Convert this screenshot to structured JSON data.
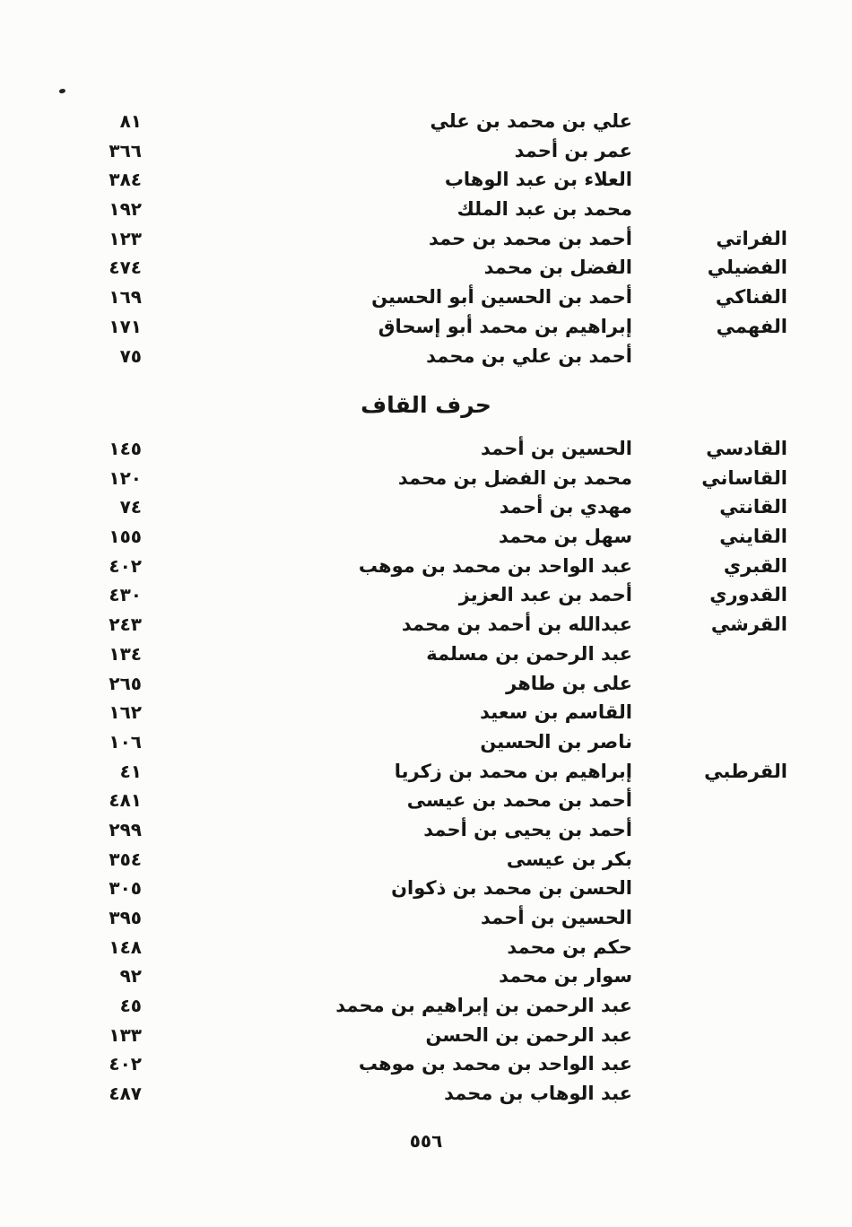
{
  "page": {
    "footer_page_number": "٥٥٦"
  },
  "sections": [
    {
      "id": "fa-section-tail",
      "heading": null,
      "rows": [
        {
          "nisba": "",
          "name": "علي بن محمد بن علي",
          "page": "٨١"
        },
        {
          "nisba": "",
          "name": "عمر بن أحمد",
          "page": "٣٦٦"
        },
        {
          "nisba": "",
          "name": "العلاء بن عبد الوهاب",
          "page": "٣٨٤"
        },
        {
          "nisba": "",
          "name": "محمد بن عبد الملك",
          "page": "١٩٢"
        },
        {
          "nisba": "الفراتي",
          "name": "أحمد بن محمد بن حمد",
          "page": "١٢٣"
        },
        {
          "nisba": "الفضيلي",
          "name": "الفضل بن محمد",
          "page": "٤٧٤"
        },
        {
          "nisba": "الفناكي",
          "name": "أحمد بن الحسين أبو الحسين",
          "page": "١٦٩"
        },
        {
          "nisba": "الفهمي",
          "name": "إبراهيم بن محمد أبو إسحاق",
          "page": "١٧١"
        },
        {
          "nisba": "",
          "name": "أحمد بن علي بن محمد",
          "page": "٧٥"
        }
      ]
    },
    {
      "id": "qaf-section",
      "heading": "حرف القاف",
      "rows": [
        {
          "nisba": "القادسي",
          "name": "الحسين بن أحمد",
          "page": "١٤٥"
        },
        {
          "nisba": "القاساني",
          "name": "محمد بن الفضل بن محمد",
          "page": "١٢٠"
        },
        {
          "nisba": "القانتي",
          "name": "مهدي بن أحمد",
          "page": "٧٤"
        },
        {
          "nisba": "القايني",
          "name": "سهل بن محمد",
          "page": "١٥٥"
        },
        {
          "nisba": "القبري",
          "name": "عبد الواحد بن محمد بن موهب",
          "page": "٤٠٢"
        },
        {
          "nisba": "القدوري",
          "name": "أحمد بن عبد العزيز",
          "page": "٤٣٠"
        },
        {
          "nisba": "القرشي",
          "name": "عبدالله بن أحمد بن محمد",
          "page": "٢٤٣"
        },
        {
          "nisba": "",
          "name": "عبد الرحمن بن مسلمة",
          "page": "١٣٤"
        },
        {
          "nisba": "",
          "name": "على بن طاهر",
          "page": "٢٦٥"
        },
        {
          "nisba": "",
          "name": "القاسم بن سعيد",
          "page": "١٦٢"
        },
        {
          "nisba": "",
          "name": "ناصر بن الحسين",
          "page": "١٠٦"
        },
        {
          "nisba": "القرطبي",
          "name": "إبراهيم بن محمد بن زكريا",
          "page": "٤١"
        },
        {
          "nisba": "",
          "name": "أحمد بن محمد بن عيسى",
          "page": "٤٨١"
        },
        {
          "nisba": "",
          "name": "أحمد بن يحيى بن أحمد",
          "page": "٢٩٩"
        },
        {
          "nisba": "",
          "name": "بكر بن عيسى",
          "page": "٣٥٤"
        },
        {
          "nisba": "",
          "name": "الحسن بن محمد بن ذكوان",
          "page": "٣٠٥"
        },
        {
          "nisba": "",
          "name": "الحسين بن أحمد",
          "page": "٣٩٥"
        },
        {
          "nisba": "",
          "name": "حكم بن محمد",
          "page": "١٤٨"
        },
        {
          "nisba": "",
          "name": "سوار بن محمد",
          "page": "٩٢"
        },
        {
          "nisba": "",
          "name": "عبد الرحمن بن إبراهيم بن محمد",
          "page": "٤٥"
        },
        {
          "nisba": "",
          "name": "عبد الرحمن بن الحسن",
          "page": "١٣٣"
        },
        {
          "nisba": "",
          "name": "عبد الواحد بن محمد بن موهب",
          "page": "٤٠٢"
        },
        {
          "nisba": "",
          "name": "عبد الوهاب بن محمد",
          "page": "٤٨٧"
        }
      ]
    }
  ]
}
